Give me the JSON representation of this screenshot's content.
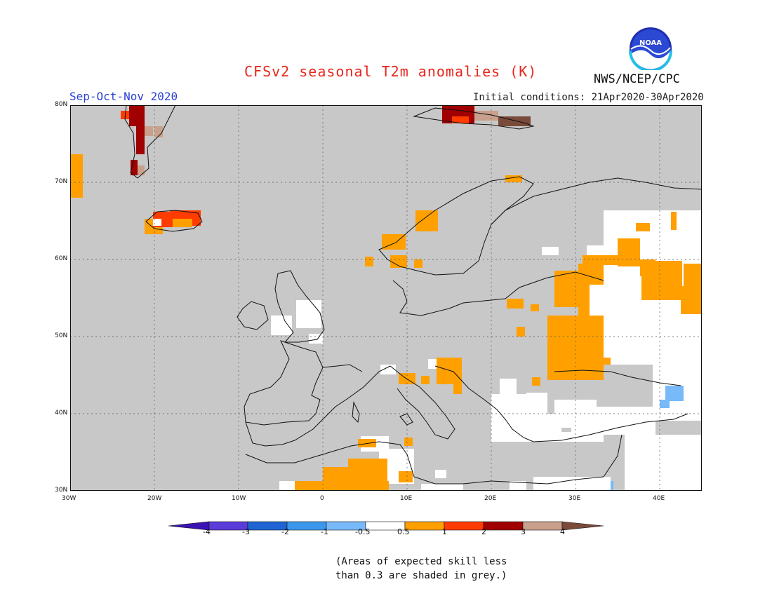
{
  "title": "CFSv2 seasonal T2m anomalies (K)",
  "season": "Sep-Oct-Nov 2020",
  "initial_conditions": "Initial conditions: 21Apr2020-30Apr2020",
  "agency": "NWS/NCEP/CPC",
  "logo_text": "NOAA",
  "map": {
    "lat_labels": [
      "80N",
      "70N",
      "60N",
      "50N",
      "40N",
      "30N"
    ],
    "lon_labels": [
      "30W",
      "20W",
      "10W",
      "0",
      "10E",
      "20E",
      "30E",
      "40E"
    ],
    "background_grey": "#c8c8c8"
  },
  "colorbar": {
    "labels": [
      "-4",
      "-3",
      "-2",
      "-1",
      "-0.5",
      "0.5",
      "1",
      "2",
      "3",
      "4"
    ],
    "colors": [
      "#3a14b4",
      "#5a3cd8",
      "#1f64d2",
      "#3c96ec",
      "#78b9fa",
      "#ffffff",
      "#ffa000",
      "#ff3c00",
      "#a00000",
      "#c8a08c",
      "#7a4a3a"
    ]
  },
  "note": [
    "(Areas of expected skill less",
    "than 0.3 are shaded in grey.)"
  ]
}
